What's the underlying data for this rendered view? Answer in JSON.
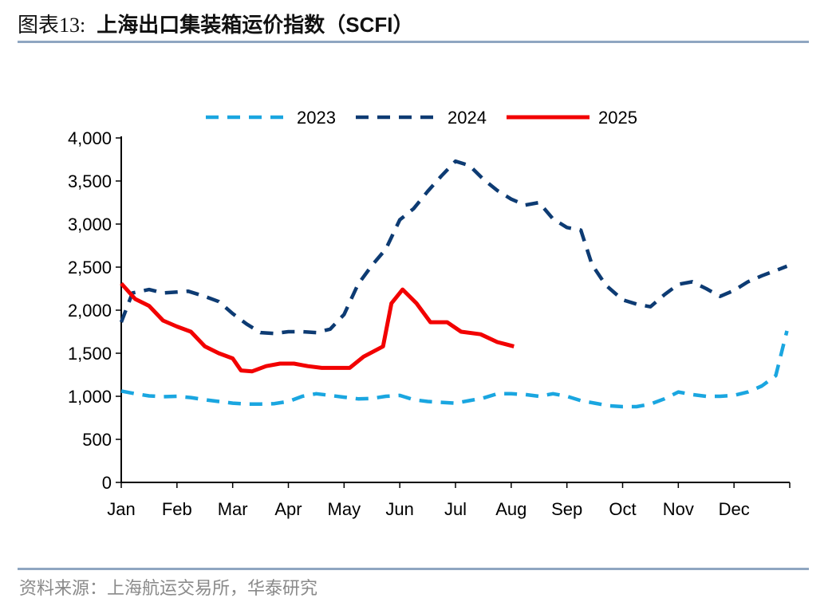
{
  "figure": {
    "number": "图表13:",
    "title": "上海出口集装箱运价指数（SCFI）",
    "source": "资料来源：上海航运交易所，华泰研究"
  },
  "chart_data": {
    "type": "line",
    "x_months": [
      "Jan",
      "Feb",
      "Mar",
      "Apr",
      "May",
      "Jun",
      "Jul",
      "Aug",
      "Sep",
      "Oct",
      "Nov",
      "Dec"
    ],
    "ylim": [
      0,
      4000
    ],
    "yticks": [
      "0",
      "500",
      "1,000",
      "1,500",
      "2,000",
      "2,500",
      "3,000",
      "3,500",
      "4,000"
    ],
    "ytick_values": [
      0,
      500,
      1000,
      1500,
      2000,
      2500,
      3000,
      3500,
      4000
    ],
    "legend_position": "top-center",
    "grid": false,
    "series": [
      {
        "name": "2023",
        "color": "#1aa6e0",
        "style": "dashed",
        "points": [
          [
            1,
            1061
          ],
          [
            1.25,
            1030
          ],
          [
            1.5,
            1005
          ],
          [
            1.75,
            995
          ],
          [
            2,
            1000
          ],
          [
            2.25,
            985
          ],
          [
            2.5,
            960
          ],
          [
            2.75,
            940
          ],
          [
            3,
            920
          ],
          [
            3.25,
            910
          ],
          [
            3.5,
            910
          ],
          [
            3.75,
            915
          ],
          [
            4,
            940
          ],
          [
            4.25,
            1000
          ],
          [
            4.5,
            1030
          ],
          [
            4.75,
            1010
          ],
          [
            5,
            990
          ],
          [
            5.25,
            970
          ],
          [
            5.5,
            975
          ],
          [
            5.75,
            1000
          ],
          [
            6,
            1010
          ],
          [
            6.25,
            960
          ],
          [
            6.5,
            940
          ],
          [
            6.75,
            930
          ],
          [
            7,
            920
          ],
          [
            7.25,
            950
          ],
          [
            7.5,
            980
          ],
          [
            7.75,
            1030
          ],
          [
            8,
            1030
          ],
          [
            8.25,
            1020
          ],
          [
            8.5,
            1000
          ],
          [
            8.75,
            1030
          ],
          [
            9,
            1000
          ],
          [
            9.25,
            950
          ],
          [
            9.5,
            920
          ],
          [
            9.75,
            890
          ],
          [
            10,
            880
          ],
          [
            10.25,
            880
          ],
          [
            10.5,
            910
          ],
          [
            10.75,
            970
          ],
          [
            11,
            1050
          ],
          [
            11.25,
            1020
          ],
          [
            11.5,
            1000
          ],
          [
            11.75,
            1000
          ],
          [
            12,
            1010
          ],
          [
            12.25,
            1050
          ],
          [
            12.5,
            1120
          ],
          [
            12.75,
            1240
          ],
          [
            12.95,
            1760
          ]
        ]
      },
      {
        "name": "2024",
        "color": "#0d3b73",
        "style": "dashed",
        "points": [
          [
            1,
            1860
          ],
          [
            1.2,
            2200
          ],
          [
            1.5,
            2240
          ],
          [
            1.75,
            2200
          ],
          [
            2,
            2210
          ],
          [
            2.2,
            2220
          ],
          [
            2.5,
            2160
          ],
          [
            2.75,
            2100
          ],
          [
            3,
            1960
          ],
          [
            3.25,
            1840
          ],
          [
            3.5,
            1740
          ],
          [
            3.75,
            1730
          ],
          [
            4,
            1750
          ],
          [
            4.25,
            1750
          ],
          [
            4.5,
            1740
          ],
          [
            4.75,
            1780
          ],
          [
            5,
            1950
          ],
          [
            5.25,
            2300
          ],
          [
            5.5,
            2520
          ],
          [
            5.75,
            2710
          ],
          [
            6,
            3050
          ],
          [
            6.25,
            3180
          ],
          [
            6.5,
            3380
          ],
          [
            6.75,
            3560
          ],
          [
            7,
            3730
          ],
          [
            7.25,
            3680
          ],
          [
            7.5,
            3520
          ],
          [
            7.75,
            3390
          ],
          [
            8,
            3290
          ],
          [
            8.25,
            3220
          ],
          [
            8.5,
            3250
          ],
          [
            8.75,
            3060
          ],
          [
            9,
            2960
          ],
          [
            9.25,
            2930
          ],
          [
            9.45,
            2530
          ],
          [
            9.7,
            2290
          ],
          [
            10,
            2120
          ],
          [
            10.25,
            2070
          ],
          [
            10.5,
            2040
          ],
          [
            10.75,
            2180
          ],
          [
            11,
            2300
          ],
          [
            11.25,
            2330
          ],
          [
            11.5,
            2250
          ],
          [
            11.75,
            2160
          ],
          [
            12,
            2230
          ],
          [
            12.25,
            2330
          ],
          [
            12.5,
            2400
          ],
          [
            12.75,
            2460
          ],
          [
            12.95,
            2510
          ]
        ]
      },
      {
        "name": "2025",
        "color": "#f20000",
        "style": "solid",
        "points": [
          [
            1,
            2310
          ],
          [
            1.25,
            2130
          ],
          [
            1.5,
            2050
          ],
          [
            1.75,
            1880
          ],
          [
            2,
            1810
          ],
          [
            2.25,
            1750
          ],
          [
            2.5,
            1580
          ],
          [
            2.75,
            1500
          ],
          [
            3,
            1440
          ],
          [
            3.15,
            1300
          ],
          [
            3.35,
            1290
          ],
          [
            3.6,
            1350
          ],
          [
            3.85,
            1380
          ],
          [
            4.1,
            1380
          ],
          [
            4.35,
            1350
          ],
          [
            4.6,
            1330
          ],
          [
            4.85,
            1330
          ],
          [
            5.1,
            1330
          ],
          [
            5.35,
            1460
          ],
          [
            5.7,
            1580
          ],
          [
            5.85,
            2080
          ],
          [
            6.05,
            2240
          ],
          [
            6.3,
            2080
          ],
          [
            6.55,
            1860
          ],
          [
            6.85,
            1860
          ],
          [
            7.1,
            1750
          ],
          [
            7.45,
            1720
          ],
          [
            7.75,
            1630
          ],
          [
            8.05,
            1580
          ]
        ]
      }
    ]
  }
}
